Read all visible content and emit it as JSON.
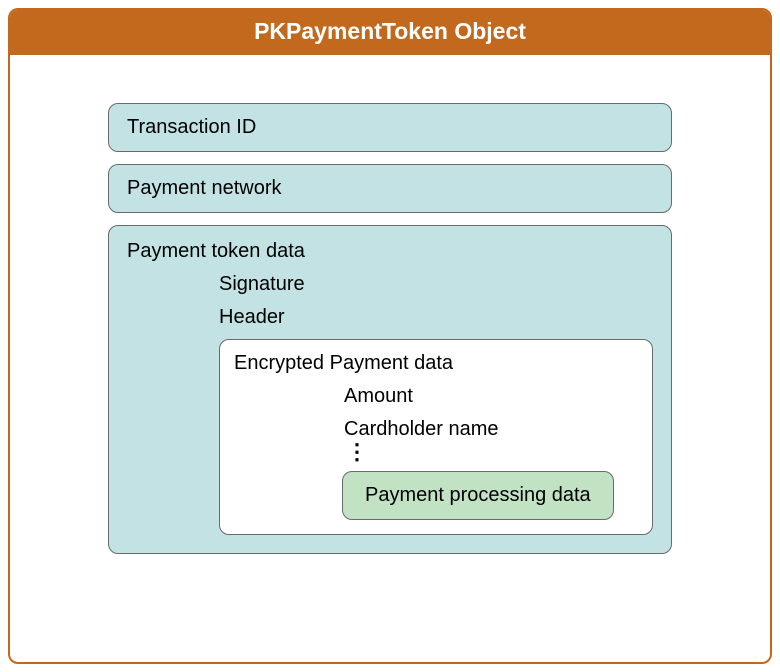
{
  "colors": {
    "outer_border": "#c2691d",
    "header_bg": "#c2691d",
    "header_text": "#ffffff",
    "box_fill": "#c3e2e4",
    "box_border": "#6a6a6a",
    "encrypted_fill": "#ffffff",
    "encrypted_border": "#6a6a6a",
    "proc_fill": "#c2e2c4",
    "proc_border": "#6a6a6a",
    "text": "#000000"
  },
  "header": {
    "title": "PKPaymentToken Object"
  },
  "transaction_id": {
    "label": "Transaction ID"
  },
  "payment_network": {
    "label": "Payment network"
  },
  "payment_token_data": {
    "label": "Payment token data",
    "signature": "Signature",
    "header": "Header",
    "encrypted": {
      "label": "Encrypted Payment data",
      "amount": "Amount",
      "cardholder": "Cardholder name",
      "processing": "Payment processing data"
    }
  }
}
